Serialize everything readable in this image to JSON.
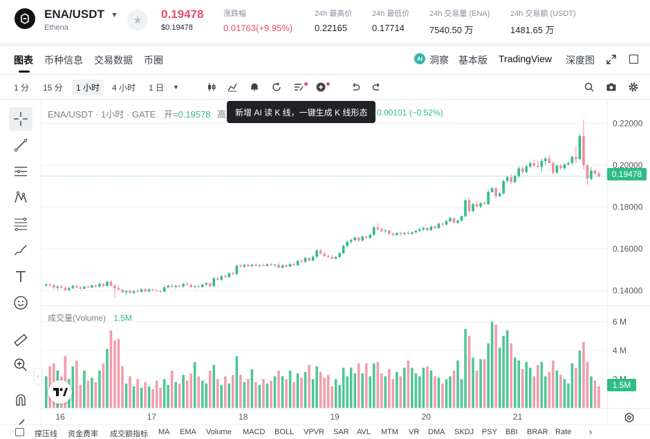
{
  "header": {
    "pair": "ENA/USDT",
    "pair_sub": "Ethena",
    "last_price": "0.19478",
    "usd_price": "$0.19478",
    "stats": [
      {
        "label": "涨跌幅",
        "value": "0.01763(+9.95%)",
        "color": "red"
      },
      {
        "label": "24h 最高价",
        "value": "0.22165",
        "color": "normal"
      },
      {
        "label": "24h 最低价",
        "value": "0.17714",
        "color": "normal"
      },
      {
        "label": "24h 交易量 (ENA)",
        "value": "7540.50 万",
        "color": "normal"
      },
      {
        "label": "24h 交易额 (USDT)",
        "value": "1481.65 万",
        "color": "normal"
      }
    ]
  },
  "tabs": {
    "left": [
      "图表",
      "币种信息",
      "交易数据",
      "币圈"
    ],
    "active": "图表",
    "insight": "洞察",
    "basic": "基本版",
    "tradingview": "TradingView",
    "depth": "深度图"
  },
  "toolbar": {
    "timeframes": [
      "1 分",
      "15 分",
      "1 小时",
      "4 小时",
      "1 日"
    ],
    "active_timeframe": "1 小时"
  },
  "chart": {
    "legend_title": "ENA/USDT · 1小时 · GATE",
    "open_label": "开=",
    "open_value": "0.19578",
    "open_cut": "高",
    "tooltip": "新增 AI 读 K 线，一键生成 K 线形态",
    "change": "-0.00101 (−0.52%)",
    "price_tag": "0.19478",
    "volume_label": "成交量(Volume)",
    "volume_value": "1.5M",
    "volume_tag": "1.5M"
  },
  "chart_data": {
    "type": "candlestick",
    "price_axis": [
      "0.22000",
      "0.20000",
      "0.18000",
      "0.16000",
      "0.14000"
    ],
    "ylim": [
      0.1335,
      0.2245
    ],
    "volume_axis": [
      "6 M",
      "4 M",
      "2 M"
    ],
    "volume_ylim": [
      0,
      6.5
    ],
    "x_ticks": [
      "16",
      "17",
      "18",
      "19",
      "20",
      "21"
    ],
    "last_close": 0.19478,
    "candles": [
      {
        "o": 0.1425,
        "h": 0.1436,
        "l": 0.1418,
        "c": 0.143,
        "v": 2.2
      },
      {
        "o": 0.143,
        "h": 0.1438,
        "l": 0.142,
        "c": 0.1426,
        "v": 2.9
      },
      {
        "o": 0.1426,
        "h": 0.1432,
        "l": 0.1408,
        "c": 0.1414,
        "v": 3.1
      },
      {
        "o": 0.1414,
        "h": 0.1424,
        "l": 0.1402,
        "c": 0.142,
        "v": 2.6
      },
      {
        "o": 0.142,
        "h": 0.1428,
        "l": 0.141,
        "c": 0.1413,
        "v": 2.2
      },
      {
        "o": 0.1413,
        "h": 0.1418,
        "l": 0.1398,
        "c": 0.1402,
        "v": 3.6
      },
      {
        "o": 0.1402,
        "h": 0.1418,
        "l": 0.1398,
        "c": 0.1412,
        "v": 2.0
      },
      {
        "o": 0.1412,
        "h": 0.1428,
        "l": 0.1408,
        "c": 0.1422,
        "v": 2.9
      },
      {
        "o": 0.1422,
        "h": 0.143,
        "l": 0.141,
        "c": 0.1416,
        "v": 3.3
      },
      {
        "o": 0.1416,
        "h": 0.142,
        "l": 0.1404,
        "c": 0.1409,
        "v": 1.6
      },
      {
        "o": 0.1409,
        "h": 0.1424,
        "l": 0.1406,
        "c": 0.1419,
        "v": 2.6
      },
      {
        "o": 0.1419,
        "h": 0.1425,
        "l": 0.1411,
        "c": 0.1415,
        "v": 1.9
      },
      {
        "o": 0.1415,
        "h": 0.1428,
        "l": 0.1412,
        "c": 0.1425,
        "v": 2.1
      },
      {
        "o": 0.1425,
        "h": 0.1431,
        "l": 0.1415,
        "c": 0.142,
        "v": 1.8
      },
      {
        "o": 0.142,
        "h": 0.144,
        "l": 0.1415,
        "c": 0.1432,
        "v": 2.6
      },
      {
        "o": 0.1432,
        "h": 0.1436,
        "l": 0.1418,
        "c": 0.1422,
        "v": 3.1
      },
      {
        "o": 0.1422,
        "h": 0.1448,
        "l": 0.142,
        "c": 0.1442,
        "v": 4.1
      },
      {
        "o": 0.1442,
        "h": 0.145,
        "l": 0.142,
        "c": 0.1425,
        "v": 5.4
      },
      {
        "o": 0.1425,
        "h": 0.143,
        "l": 0.1365,
        "c": 0.1412,
        "v": 4.7
      },
      {
        "o": 0.1412,
        "h": 0.1428,
        "l": 0.14,
        "c": 0.1405,
        "v": 4.8
      },
      {
        "o": 0.1405,
        "h": 0.1408,
        "l": 0.1388,
        "c": 0.1392,
        "v": 2.9
      },
      {
        "o": 0.1392,
        "h": 0.1402,
        "l": 0.138,
        "c": 0.1398,
        "v": 1.7
      },
      {
        "o": 0.1398,
        "h": 0.1405,
        "l": 0.1384,
        "c": 0.1389,
        "v": 2.2
      },
      {
        "o": 0.1389,
        "h": 0.1402,
        "l": 0.1384,
        "c": 0.1397,
        "v": 1.5
      },
      {
        "o": 0.1397,
        "h": 0.1408,
        "l": 0.139,
        "c": 0.1394,
        "v": 2.0
      },
      {
        "o": 0.1394,
        "h": 0.141,
        "l": 0.139,
        "c": 0.1406,
        "v": 1.4
      },
      {
        "o": 0.1406,
        "h": 0.1412,
        "l": 0.1392,
        "c": 0.1396,
        "v": 1.8
      },
      {
        "o": 0.1396,
        "h": 0.141,
        "l": 0.1393,
        "c": 0.1405,
        "v": 1.5
      },
      {
        "o": 0.1405,
        "h": 0.141,
        "l": 0.1397,
        "c": 0.1401,
        "v": 1.3
      },
      {
        "o": 0.1401,
        "h": 0.1406,
        "l": 0.1394,
        "c": 0.1398,
        "v": 1.9
      },
      {
        "o": 0.1398,
        "h": 0.1404,
        "l": 0.139,
        "c": 0.1395,
        "v": 1.4
      },
      {
        "o": 0.1395,
        "h": 0.1422,
        "l": 0.1392,
        "c": 0.1416,
        "v": 2.0
      },
      {
        "o": 0.1416,
        "h": 0.1428,
        "l": 0.141,
        "c": 0.1424,
        "v": 1.6
      },
      {
        "o": 0.1424,
        "h": 0.1432,
        "l": 0.1413,
        "c": 0.1418,
        "v": 2.6
      },
      {
        "o": 0.1418,
        "h": 0.1428,
        "l": 0.1408,
        "c": 0.1423,
        "v": 1.8
      },
      {
        "o": 0.1423,
        "h": 0.143,
        "l": 0.1416,
        "c": 0.142,
        "v": 1.7
      },
      {
        "o": 0.142,
        "h": 0.1438,
        "l": 0.1415,
        "c": 0.1432,
        "v": 2.3
      },
      {
        "o": 0.1432,
        "h": 0.144,
        "l": 0.1422,
        "c": 0.1428,
        "v": 1.9
      },
      {
        "o": 0.1428,
        "h": 0.1435,
        "l": 0.1412,
        "c": 0.1418,
        "v": 2.4
      },
      {
        "o": 0.1418,
        "h": 0.1426,
        "l": 0.141,
        "c": 0.1421,
        "v": 3.2
      },
      {
        "o": 0.1421,
        "h": 0.1428,
        "l": 0.1414,
        "c": 0.1417,
        "v": 2.2
      },
      {
        "o": 0.1417,
        "h": 0.1433,
        "l": 0.1414,
        "c": 0.1429,
        "v": 1.9
      },
      {
        "o": 0.1429,
        "h": 0.144,
        "l": 0.1424,
        "c": 0.1436,
        "v": 1.7
      },
      {
        "o": 0.1436,
        "h": 0.1438,
        "l": 0.1416,
        "c": 0.1421,
        "v": 2.6
      },
      {
        "o": 0.1421,
        "h": 0.1465,
        "l": 0.1418,
        "c": 0.1458,
        "v": 3.0
      },
      {
        "o": 0.1458,
        "h": 0.147,
        "l": 0.1448,
        "c": 0.1452,
        "v": 2.0
      },
      {
        "o": 0.1452,
        "h": 0.1474,
        "l": 0.1446,
        "c": 0.1469,
        "v": 1.6
      },
      {
        "o": 0.1469,
        "h": 0.1478,
        "l": 0.146,
        "c": 0.1465,
        "v": 2.2
      },
      {
        "o": 0.1465,
        "h": 0.149,
        "l": 0.1462,
        "c": 0.1483,
        "v": 1.7
      },
      {
        "o": 0.1483,
        "h": 0.149,
        "l": 0.1475,
        "c": 0.1479,
        "v": 2.3
      },
      {
        "o": 0.1479,
        "h": 0.1525,
        "l": 0.1476,
        "c": 0.1519,
        "v": 3.6
      },
      {
        "o": 0.1519,
        "h": 0.153,
        "l": 0.151,
        "c": 0.1515,
        "v": 2.3
      },
      {
        "o": 0.1515,
        "h": 0.1528,
        "l": 0.1508,
        "c": 0.1523,
        "v": 1.8
      },
      {
        "o": 0.1523,
        "h": 0.1528,
        "l": 0.1512,
        "c": 0.1517,
        "v": 2.0
      },
      {
        "o": 0.1517,
        "h": 0.1527,
        "l": 0.1511,
        "c": 0.1524,
        "v": 2.7
      },
      {
        "o": 0.1524,
        "h": 0.153,
        "l": 0.1516,
        "c": 0.1519,
        "v": 1.8
      },
      {
        "o": 0.1519,
        "h": 0.1526,
        "l": 0.1512,
        "c": 0.1522,
        "v": 1.6
      },
      {
        "o": 0.1522,
        "h": 0.153,
        "l": 0.1514,
        "c": 0.1518,
        "v": 2.0
      },
      {
        "o": 0.1518,
        "h": 0.153,
        "l": 0.1516,
        "c": 0.1526,
        "v": 1.7
      },
      {
        "o": 0.1526,
        "h": 0.1534,
        "l": 0.1518,
        "c": 0.1522,
        "v": 1.9
      },
      {
        "o": 0.1522,
        "h": 0.1529,
        "l": 0.1515,
        "c": 0.1524,
        "v": 2.2
      },
      {
        "o": 0.1524,
        "h": 0.1535,
        "l": 0.1505,
        "c": 0.151,
        "v": 2.6
      },
      {
        "o": 0.151,
        "h": 0.1526,
        "l": 0.1507,
        "c": 0.1521,
        "v": 2.2
      },
      {
        "o": 0.1521,
        "h": 0.1526,
        "l": 0.1511,
        "c": 0.1515,
        "v": 2.0
      },
      {
        "o": 0.1515,
        "h": 0.1532,
        "l": 0.1512,
        "c": 0.1527,
        "v": 2.6
      },
      {
        "o": 0.1527,
        "h": 0.1533,
        "l": 0.1518,
        "c": 0.1522,
        "v": 1.8
      },
      {
        "o": 0.1522,
        "h": 0.1548,
        "l": 0.1518,
        "c": 0.1542,
        "v": 2.4
      },
      {
        "o": 0.1542,
        "h": 0.155,
        "l": 0.1532,
        "c": 0.1538,
        "v": 2.1
      },
      {
        "o": 0.1538,
        "h": 0.1563,
        "l": 0.1532,
        "c": 0.1556,
        "v": 2.5
      },
      {
        "o": 0.1556,
        "h": 0.156,
        "l": 0.154,
        "c": 0.1544,
        "v": 3.0
      },
      {
        "o": 0.1544,
        "h": 0.1567,
        "l": 0.154,
        "c": 0.1562,
        "v": 2.0
      },
      {
        "o": 0.1562,
        "h": 0.16,
        "l": 0.1556,
        "c": 0.1592,
        "v": 2.9
      },
      {
        "o": 0.1592,
        "h": 0.1599,
        "l": 0.1572,
        "c": 0.1577,
        "v": 2.5
      },
      {
        "o": 0.1577,
        "h": 0.1584,
        "l": 0.156,
        "c": 0.1565,
        "v": 2.1
      },
      {
        "o": 0.1565,
        "h": 0.1574,
        "l": 0.1555,
        "c": 0.156,
        "v": 2.3
      },
      {
        "o": 0.156,
        "h": 0.157,
        "l": 0.155,
        "c": 0.1553,
        "v": 1.5
      },
      {
        "o": 0.1553,
        "h": 0.1565,
        "l": 0.1549,
        "c": 0.1561,
        "v": 2.0
      },
      {
        "o": 0.1561,
        "h": 0.1584,
        "l": 0.1555,
        "c": 0.1579,
        "v": 1.6
      },
      {
        "o": 0.1579,
        "h": 0.162,
        "l": 0.1574,
        "c": 0.1614,
        "v": 2.8
      },
      {
        "o": 0.1614,
        "h": 0.164,
        "l": 0.1608,
        "c": 0.1634,
        "v": 2.2
      },
      {
        "o": 0.1634,
        "h": 0.1648,
        "l": 0.1626,
        "c": 0.1642,
        "v": 2.8
      },
      {
        "o": 0.1642,
        "h": 0.166,
        "l": 0.1636,
        "c": 0.1654,
        "v": 2.4
      },
      {
        "o": 0.1654,
        "h": 0.1658,
        "l": 0.1634,
        "c": 0.164,
        "v": 3.1
      },
      {
        "o": 0.164,
        "h": 0.1664,
        "l": 0.1634,
        "c": 0.1658,
        "v": 2.4
      },
      {
        "o": 0.1658,
        "h": 0.1662,
        "l": 0.1648,
        "c": 0.1652,
        "v": 3.1
      },
      {
        "o": 0.1652,
        "h": 0.1672,
        "l": 0.1648,
        "c": 0.1667,
        "v": 2.2
      },
      {
        "o": 0.1667,
        "h": 0.171,
        "l": 0.1662,
        "c": 0.1703,
        "v": 3.1
      },
      {
        "o": 0.1703,
        "h": 0.1722,
        "l": 0.1686,
        "c": 0.1694,
        "v": 3.2
      },
      {
        "o": 0.1694,
        "h": 0.1702,
        "l": 0.168,
        "c": 0.1684,
        "v": 2.4
      },
      {
        "o": 0.1684,
        "h": 0.1694,
        "l": 0.1676,
        "c": 0.1688,
        "v": 2.2
      },
      {
        "o": 0.1688,
        "h": 0.1692,
        "l": 0.1667,
        "c": 0.1672,
        "v": 2.7
      },
      {
        "o": 0.1672,
        "h": 0.1682,
        "l": 0.166,
        "c": 0.1666,
        "v": 2.0
      },
      {
        "o": 0.1666,
        "h": 0.168,
        "l": 0.1662,
        "c": 0.1675,
        "v": 2.5
      },
      {
        "o": 0.1675,
        "h": 0.1682,
        "l": 0.1664,
        "c": 0.1671,
        "v": 2.2
      },
      {
        "o": 0.1671,
        "h": 0.168,
        "l": 0.1665,
        "c": 0.1676,
        "v": 2.8
      },
      {
        "o": 0.1676,
        "h": 0.1686,
        "l": 0.1668,
        "c": 0.1672,
        "v": 3.3
      },
      {
        "o": 0.1672,
        "h": 0.1684,
        "l": 0.1668,
        "c": 0.1679,
        "v": 2.8
      },
      {
        "o": 0.1679,
        "h": 0.169,
        "l": 0.1672,
        "c": 0.1686,
        "v": 2.4
      },
      {
        "o": 0.1686,
        "h": 0.17,
        "l": 0.168,
        "c": 0.1693,
        "v": 2.2
      },
      {
        "o": 0.1693,
        "h": 0.1706,
        "l": 0.1686,
        "c": 0.17,
        "v": 2.8
      },
      {
        "o": 0.17,
        "h": 0.1704,
        "l": 0.1684,
        "c": 0.1689,
        "v": 2.9
      },
      {
        "o": 0.1689,
        "h": 0.1712,
        "l": 0.1686,
        "c": 0.1706,
        "v": 2.6
      },
      {
        "o": 0.1706,
        "h": 0.1714,
        "l": 0.1694,
        "c": 0.1699,
        "v": 2.2
      },
      {
        "o": 0.1699,
        "h": 0.1726,
        "l": 0.1696,
        "c": 0.172,
        "v": 2.1
      },
      {
        "o": 0.172,
        "h": 0.1728,
        "l": 0.171,
        "c": 0.1716,
        "v": 1.7
      },
      {
        "o": 0.1716,
        "h": 0.1738,
        "l": 0.1712,
        "c": 0.1732,
        "v": 2.0
      },
      {
        "o": 0.1732,
        "h": 0.1752,
        "l": 0.1727,
        "c": 0.1747,
        "v": 2.2
      },
      {
        "o": 0.1747,
        "h": 0.175,
        "l": 0.172,
        "c": 0.1725,
        "v": 2.6
      },
      {
        "o": 0.1725,
        "h": 0.174,
        "l": 0.172,
        "c": 0.1735,
        "v": 3.3
      },
      {
        "o": 0.1735,
        "h": 0.176,
        "l": 0.173,
        "c": 0.1756,
        "v": 2.0
      },
      {
        "o": 0.1756,
        "h": 0.184,
        "l": 0.1752,
        "c": 0.1832,
        "v": 5.5
      },
      {
        "o": 0.1832,
        "h": 0.1846,
        "l": 0.177,
        "c": 0.178,
        "v": 5.0
      },
      {
        "o": 0.178,
        "h": 0.182,
        "l": 0.1776,
        "c": 0.1814,
        "v": 3.5
      },
      {
        "o": 0.1814,
        "h": 0.183,
        "l": 0.1796,
        "c": 0.1802,
        "v": 2.6
      },
      {
        "o": 0.1802,
        "h": 0.1824,
        "l": 0.1795,
        "c": 0.1819,
        "v": 3.4
      },
      {
        "o": 0.1819,
        "h": 0.183,
        "l": 0.181,
        "c": 0.1814,
        "v": 3.4
      },
      {
        "o": 0.1814,
        "h": 0.188,
        "l": 0.181,
        "c": 0.1872,
        "v": 4.5
      },
      {
        "o": 0.1872,
        "h": 0.1895,
        "l": 0.1868,
        "c": 0.189,
        "v": 6.0
      },
      {
        "o": 0.189,
        "h": 0.1896,
        "l": 0.184,
        "c": 0.1852,
        "v": 5.8
      },
      {
        "o": 0.1852,
        "h": 0.187,
        "l": 0.1846,
        "c": 0.1865,
        "v": 4.2
      },
      {
        "o": 0.1865,
        "h": 0.1932,
        "l": 0.186,
        "c": 0.1925,
        "v": 5.0
      },
      {
        "o": 0.1925,
        "h": 0.195,
        "l": 0.1916,
        "c": 0.1942,
        "v": 5.4
      },
      {
        "o": 0.1942,
        "h": 0.196,
        "l": 0.191,
        "c": 0.192,
        "v": 4.5
      },
      {
        "o": 0.192,
        "h": 0.1955,
        "l": 0.1915,
        "c": 0.1948,
        "v": 3.5
      },
      {
        "o": 0.1948,
        "h": 0.1995,
        "l": 0.194,
        "c": 0.1985,
        "v": 3.3
      },
      {
        "o": 0.1985,
        "h": 0.1998,
        "l": 0.1958,
        "c": 0.1968,
        "v": 2.7
      },
      {
        "o": 0.1968,
        "h": 0.2005,
        "l": 0.196,
        "c": 0.1994,
        "v": 3.2
      },
      {
        "o": 0.1994,
        "h": 0.2018,
        "l": 0.1988,
        "c": 0.201,
        "v": 2.8
      },
      {
        "o": 0.201,
        "h": 0.2028,
        "l": 0.199,
        "c": 0.1998,
        "v": 2.2
      },
      {
        "o": 0.1998,
        "h": 0.202,
        "l": 0.1985,
        "c": 0.1992,
        "v": 3.0
      },
      {
        "o": 0.1992,
        "h": 0.203,
        "l": 0.197,
        "c": 0.202,
        "v": 3.2
      },
      {
        "o": 0.202,
        "h": 0.204,
        "l": 0.2,
        "c": 0.2032,
        "v": 2.2
      },
      {
        "o": 0.2032,
        "h": 0.205,
        "l": 0.2016,
        "c": 0.201,
        "v": 2.5
      },
      {
        "o": 0.201,
        "h": 0.202,
        "l": 0.1955,
        "c": 0.1965,
        "v": 3.3
      },
      {
        "o": 0.1965,
        "h": 0.2005,
        "l": 0.1958,
        "c": 0.1998,
        "v": 2.6
      },
      {
        "o": 0.1998,
        "h": 0.2008,
        "l": 0.1978,
        "c": 0.1985,
        "v": 2.3
      },
      {
        "o": 0.1985,
        "h": 0.201,
        "l": 0.198,
        "c": 0.2004,
        "v": 2.0
      },
      {
        "o": 0.2004,
        "h": 0.2018,
        "l": 0.1996,
        "c": 0.2011,
        "v": 1.7
      },
      {
        "o": 0.2011,
        "h": 0.2046,
        "l": 0.2002,
        "c": 0.204,
        "v": 3.1
      },
      {
        "o": 0.204,
        "h": 0.209,
        "l": 0.201,
        "c": 0.203,
        "v": 2.8
      },
      {
        "o": 0.203,
        "h": 0.215,
        "l": 0.2025,
        "c": 0.214,
        "v": 4.0
      },
      {
        "o": 0.214,
        "h": 0.2216,
        "l": 0.198,
        "c": 0.2,
        "v": 4.6
      },
      {
        "o": 0.2,
        "h": 0.2006,
        "l": 0.1905,
        "c": 0.1935,
        "v": 3.2
      },
      {
        "o": 0.1935,
        "h": 0.199,
        "l": 0.1926,
        "c": 0.1974,
        "v": 2.2
      },
      {
        "o": 0.1974,
        "h": 0.1984,
        "l": 0.1955,
        "c": 0.196,
        "v": 1.9
      },
      {
        "o": 0.196,
        "h": 0.1972,
        "l": 0.194,
        "c": 0.1948,
        "v": 1.5
      }
    ]
  },
  "draw_tools": [
    "crosshair-icon",
    "trend-line-icon",
    "horizontal-lines-icon",
    "pattern-icon",
    "fib-icon",
    "brush-icon",
    "text-tool-icon",
    "emoji-icon",
    "ruler-icon",
    "zoom-in-icon",
    "magnet-icon",
    "lock-icon"
  ],
  "indicators": [
    "撑压线",
    "资金费率",
    "成交额指标",
    "MA",
    "EMA",
    "Volume",
    "MACD",
    "BOLL",
    "VPVR",
    "SAR",
    "AVL",
    "MTM",
    "VR",
    "DMA",
    "SKDJ",
    "PSY",
    "BBI",
    "BRAR",
    "Rate"
  ],
  "colors": {
    "up": "#2ebd85",
    "down": "#f08c9c",
    "accent_red": "#e84e63"
  }
}
